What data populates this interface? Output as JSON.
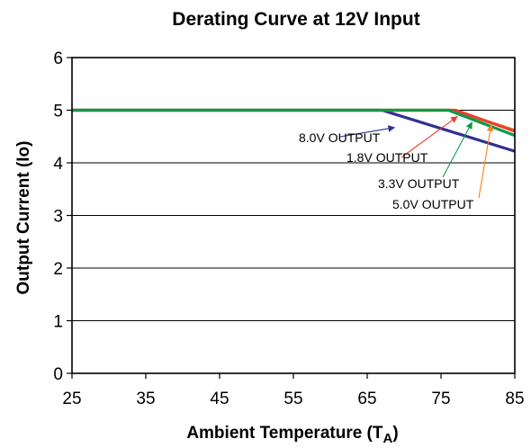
{
  "chart_data": {
    "type": "line",
    "title": "Derating Curve at 12V Input",
    "xlabel": "Ambient Temperature (T",
    "xlabel_sub": "A",
    "xlabel_close": ")",
    "ylabel": "Output Current (Io)",
    "xlim": [
      25,
      85
    ],
    "ylim": [
      0,
      6
    ],
    "x_ticks": [
      "25",
      "35",
      "45",
      "55",
      "65",
      "75",
      "85"
    ],
    "y_ticks": [
      "0",
      "1",
      "2",
      "3",
      "4",
      "5",
      "6"
    ],
    "grid": "horizontal",
    "series": [
      {
        "name": "8.0V OUTPUT",
        "color": "#2e3192",
        "points": [
          [
            25,
            5.0
          ],
          [
            67,
            5.0
          ],
          [
            85,
            4.22
          ]
        ]
      },
      {
        "name": "1.8V OUTPUT",
        "color": "#e8402f",
        "points": [
          [
            25,
            5.0
          ],
          [
            77,
            5.0
          ],
          [
            85,
            4.6
          ]
        ]
      },
      {
        "name": "3.3V OUTPUT",
        "color": "#0f9a48",
        "points": [
          [
            25,
            5.0
          ],
          [
            76,
            5.0
          ],
          [
            85,
            4.52
          ]
        ]
      },
      {
        "name": "5.0V OUTPUT",
        "color": "#f58220",
        "points": [
          [
            25,
            5.0
          ],
          [
            76.5,
            5.0
          ],
          [
            85,
            4.62
          ]
        ]
      }
    ],
    "annotations": [
      {
        "series": 0,
        "text": "8.0V OUTPUT",
        "point": [
          68.7,
          4.67
        ]
      },
      {
        "series": 1,
        "text": "1.8V OUTPUT",
        "point": [
          77.2,
          4.88
        ]
      },
      {
        "series": 2,
        "text": "3.3V OUTPUT",
        "point": [
          79.2,
          4.77
        ]
      },
      {
        "series": 3,
        "text": "5.0V OUTPUT",
        "point": [
          81.8,
          4.72
        ]
      }
    ]
  }
}
